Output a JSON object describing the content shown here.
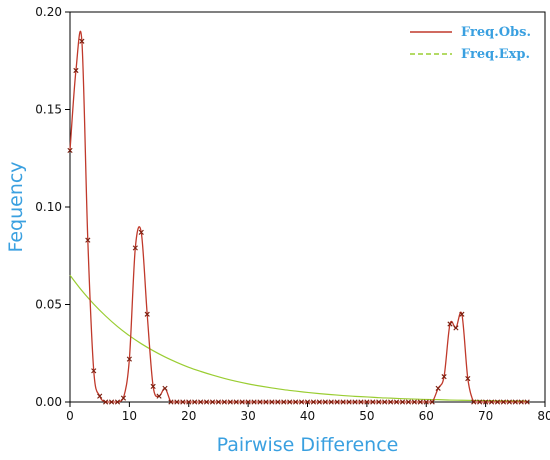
{
  "chart_data": {
    "type": "line",
    "xlabel": "Pairwise Difference",
    "ylabel": "Fequency",
    "xlim": [
      0,
      80
    ],
    "ylim": [
      0,
      0.2
    ],
    "xticks": [
      0,
      10,
      20,
      30,
      40,
      50,
      60,
      70,
      80
    ],
    "yticks": [
      0,
      0.05,
      0.1,
      0.15,
      0.2
    ],
    "xtick_labels": [
      "0",
      "10",
      "20",
      "30",
      "40",
      "50",
      "60",
      "70",
      "80"
    ],
    "ytick_labels": [
      "0.00",
      "0.05",
      "0.10",
      "0.15",
      "0.20"
    ],
    "grid": false,
    "legend": {
      "placement": "top-right"
    },
    "series": [
      {
        "name": "Freq.Obs.",
        "color": "#c0392b",
        "style": "solid",
        "x": [
          0,
          1,
          2,
          3,
          4,
          5,
          6,
          7,
          8,
          9,
          10,
          11,
          12,
          13,
          14,
          15,
          16,
          17,
          18,
          19,
          20,
          21,
          22,
          23,
          24,
          25,
          26,
          27,
          28,
          29,
          30,
          31,
          32,
          33,
          34,
          35,
          36,
          37,
          38,
          39,
          40,
          41,
          42,
          43,
          44,
          45,
          46,
          47,
          48,
          49,
          50,
          51,
          52,
          53,
          54,
          55,
          56,
          57,
          58,
          59,
          60,
          61,
          62,
          63,
          64,
          65,
          66,
          67,
          68,
          69,
          70,
          71,
          72,
          73,
          74,
          75,
          76,
          77
        ],
        "y": [
          0.129,
          0.17,
          0.185,
          0.083,
          0.016,
          0.003,
          0.0,
          0.0,
          0.0,
          0.002,
          0.022,
          0.079,
          0.087,
          0.045,
          0.008,
          0.003,
          0.007,
          0.0,
          0.0,
          0.0,
          0.0,
          0.0,
          0.0,
          0.0,
          0.0,
          0.0,
          0.0,
          0.0,
          0.0,
          0.0,
          0.0,
          0.0,
          0.0,
          0.0,
          0.0,
          0.0,
          0.0,
          0.0,
          0.0,
          0.0,
          0.0,
          0.0,
          0.0,
          0.0,
          0.0,
          0.0,
          0.0,
          0.0,
          0.0,
          0.0,
          0.0,
          0.0,
          0.0,
          0.0,
          0.0,
          0.0,
          0.0,
          0.0,
          0.0,
          0.0,
          0.0,
          0.0,
          0.007,
          0.013,
          0.04,
          0.038,
          0.045,
          0.012,
          0.0,
          0.0,
          0.0,
          0.0,
          0.0,
          0.0,
          0.0,
          0.0,
          0.0,
          0.0
        ]
      },
      {
        "name": "Freq.Exp.",
        "color": "#9acd32",
        "style": "dashed",
        "x": [
          0,
          2,
          4,
          6,
          8,
          10,
          12,
          14,
          16,
          18,
          20,
          22,
          24,
          26,
          28,
          30,
          32,
          34,
          36,
          38,
          40,
          42,
          44,
          46,
          48,
          50,
          52,
          54,
          56,
          58,
          60,
          62,
          64,
          66,
          68,
          70,
          72,
          74,
          76,
          77
        ],
        "y": [
          0.065,
          0.0571,
          0.0502,
          0.0441,
          0.0387,
          0.034,
          0.0299,
          0.0263,
          0.0231,
          0.0203,
          0.0178,
          0.0157,
          0.0138,
          0.0121,
          0.0106,
          0.0093,
          0.0082,
          0.0072,
          0.0063,
          0.0056,
          0.0049,
          0.0043,
          0.0038,
          0.0033,
          0.0029,
          0.0026,
          0.0022,
          0.002,
          0.0017,
          0.0015,
          0.0013,
          0.0012,
          0.001,
          0.0009,
          0.0008,
          0.0007,
          0.0006,
          0.0005,
          0.0005,
          0.0004
        ]
      }
    ]
  }
}
